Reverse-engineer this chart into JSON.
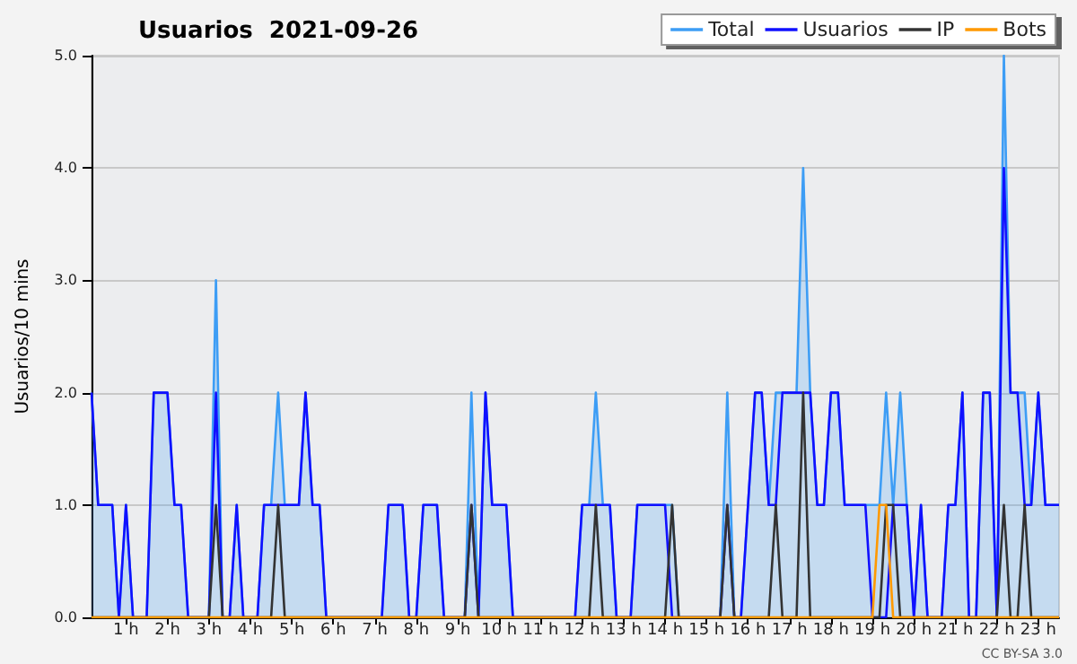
{
  "chart_data": {
    "type": "line",
    "title": "Usuarios  2021-09-26",
    "ylabel": "Usuarios/10 mins",
    "xlim": [
      0.17,
      23.5
    ],
    "ylim": [
      0,
      5
    ],
    "xticks": [
      {
        "value": 1,
        "label": "1 h"
      },
      {
        "value": 2,
        "label": "2 h"
      },
      {
        "value": 3,
        "label": "3 h"
      },
      {
        "value": 4,
        "label": "4 h"
      },
      {
        "value": 5,
        "label": "5 h"
      },
      {
        "value": 6,
        "label": "6 h"
      },
      {
        "value": 7,
        "label": "7 h"
      },
      {
        "value": 8,
        "label": "8 h"
      },
      {
        "value": 9,
        "label": "9 h"
      },
      {
        "value": 10,
        "label": "10 h"
      },
      {
        "value": 11,
        "label": "11 h"
      },
      {
        "value": 12,
        "label": "12 h"
      },
      {
        "value": 13,
        "label": "13 h"
      },
      {
        "value": 14,
        "label": "14 h"
      },
      {
        "value": 15,
        "label": "15 h"
      },
      {
        "value": 16,
        "label": "16 h"
      },
      {
        "value": 17,
        "label": "17 h"
      },
      {
        "value": 18,
        "label": "18 h"
      },
      {
        "value": 19,
        "label": "19 h"
      },
      {
        "value": 20,
        "label": "20 h"
      },
      {
        "value": 21,
        "label": "21 h"
      },
      {
        "value": 22,
        "label": "22 h"
      },
      {
        "value": 23,
        "label": "23 h"
      }
    ],
    "yticks": [
      {
        "value": 0,
        "label": "0.0"
      },
      {
        "value": 1,
        "label": "1.0"
      },
      {
        "value": 2,
        "label": "2.0"
      },
      {
        "value": 3,
        "label": "3.0"
      },
      {
        "value": 4,
        "label": "4.0"
      },
      {
        "value": 5,
        "label": "5.0"
      }
    ],
    "grid": "y",
    "legend": "top right",
    "marker": "none",
    "line_style": "solid",
    "annotations": [
      "CC BY-SA 3.0"
    ],
    "series": [
      {
        "name": "Total",
        "type": "area",
        "color": "#3d9df5",
        "x": [
          0.17,
          0.33,
          0.67,
          0.83,
          1,
          1.17,
          1.5,
          1.67,
          2,
          2.17,
          2.33,
          2.5,
          3,
          3.17,
          3.33,
          3.5,
          3.67,
          3.83,
          4.17,
          4.33,
          4.5,
          4.67,
          4.83,
          5.17,
          5.33,
          5.5,
          5.67,
          5.83,
          7.17,
          7.33,
          7.67,
          7.83,
          8,
          8.17,
          8.5,
          8.67,
          9.17,
          9.33,
          9.5,
          9.67,
          9.83,
          10.17,
          10.33,
          11.83,
          12,
          12.17,
          12.33,
          12.5,
          12.67,
          12.83,
          13.17,
          13.33,
          14.17,
          14.33,
          15.33,
          15.5,
          15.67,
          15.83,
          16.17,
          16.33,
          16.5,
          16.67,
          16.83,
          17.17,
          17.33,
          17.5,
          17.67,
          17.83,
          18,
          18.17,
          18.33,
          18.83,
          19.17,
          19.33,
          19.5,
          19.67,
          19.83,
          20,
          20.17,
          20.33,
          20.67,
          20.83,
          21,
          21.17,
          21.33,
          21.5,
          21.67,
          21.83,
          22,
          22.17,
          22.33,
          22.5,
          22.67,
          22.83,
          23,
          23.17,
          23.5
        ],
        "values": [
          2,
          1,
          1,
          0,
          1,
          0,
          0,
          2,
          2,
          1,
          1,
          0,
          0,
          3,
          0,
          0,
          1,
          0,
          0,
          1,
          1,
          2,
          1,
          1,
          2,
          1,
          1,
          0,
          0,
          1,
          1,
          0,
          0,
          1,
          1,
          0,
          0,
          2,
          0,
          2,
          1,
          1,
          0,
          0,
          1,
          1,
          2,
          1,
          1,
          0,
          0,
          1,
          1,
          0,
          0,
          2,
          0,
          0,
          2,
          2,
          1,
          2,
          2,
          2,
          4,
          2,
          1,
          1,
          2,
          2,
          1,
          1,
          1,
          2,
          1,
          2,
          1,
          0,
          1,
          0,
          0,
          1,
          1,
          2,
          0,
          0,
          2,
          2,
          0,
          5,
          2,
          2,
          2,
          1,
          2,
          1,
          1
        ]
      },
      {
        "name": "Usuarios",
        "color": "#1010ff",
        "x": [
          0.17,
          0.33,
          0.67,
          0.83,
          1,
          1.17,
          1.5,
          1.67,
          2,
          2.17,
          2.33,
          2.5,
          3,
          3.17,
          3.33,
          3.5,
          3.67,
          3.83,
          4.17,
          4.33,
          5.17,
          5.33,
          5.5,
          5.67,
          5.83,
          7.17,
          7.33,
          7.67,
          7.83,
          8,
          8.17,
          8.5,
          8.67,
          9.17,
          9.33,
          9.5,
          9.67,
          9.83,
          10.17,
          10.33,
          11.83,
          12,
          12.67,
          12.83,
          13.17,
          13.33,
          14,
          14.17,
          15.33,
          15.5,
          15.67,
          15.83,
          16.17,
          16.33,
          16.5,
          16.67,
          16.83,
          17.5,
          17.67,
          17.83,
          18,
          18.17,
          18.33,
          18.83,
          19,
          19.33,
          19.5,
          19.83,
          20,
          20.17,
          20.33,
          20.67,
          20.83,
          21,
          21.17,
          21.33,
          21.5,
          21.67,
          21.83,
          22,
          22.17,
          22.33,
          22.5,
          22.67,
          22.83,
          23,
          23.17,
          23.5
        ],
        "values": [
          2,
          1,
          1,
          0,
          1,
          0,
          0,
          2,
          2,
          1,
          1,
          0,
          0,
          2,
          0,
          0,
          1,
          0,
          0,
          1,
          1,
          2,
          1,
          1,
          0,
          0,
          1,
          1,
          0,
          0,
          1,
          1,
          0,
          0,
          1,
          0,
          2,
          1,
          1,
          0,
          0,
          1,
          1,
          0,
          0,
          1,
          1,
          0,
          0,
          1,
          0,
          0,
          2,
          2,
          1,
          1,
          2,
          2,
          1,
          1,
          2,
          2,
          1,
          1,
          0,
          0,
          1,
          1,
          0,
          1,
          0,
          0,
          1,
          1,
          2,
          0,
          0,
          2,
          2,
          0,
          4,
          2,
          2,
          1,
          1,
          2,
          1,
          1
        ]
      },
      {
        "name": "IP",
        "color": "#333333",
        "x": [
          0.17,
          3,
          3.17,
          3.33,
          4.5,
          4.67,
          4.83,
          9.17,
          9.33,
          9.5,
          12.17,
          12.33,
          12.5,
          14,
          14.17,
          14.33,
          15.33,
          15.5,
          15.67,
          16.5,
          16.67,
          16.83,
          17.17,
          17.33,
          17.5,
          19.17,
          19.33,
          19.5,
          19.67,
          22,
          22.17,
          22.33,
          22.5,
          22.67,
          22.83,
          23.5
        ],
        "values": [
          0,
          0,
          1,
          0,
          0,
          1,
          0,
          0,
          1,
          0,
          0,
          1,
          0,
          0,
          1,
          0,
          0,
          1,
          0,
          0,
          1,
          0,
          0,
          2,
          0,
          0,
          1,
          1,
          0,
          0,
          1,
          0,
          0,
          1,
          0,
          0
        ]
      },
      {
        "name": "Bots",
        "color": "#ff9900",
        "x": [
          0.17,
          19,
          19.17,
          19.33,
          19.5,
          23.5
        ],
        "values": [
          0,
          0,
          1,
          1,
          0,
          0
        ]
      }
    ]
  }
}
